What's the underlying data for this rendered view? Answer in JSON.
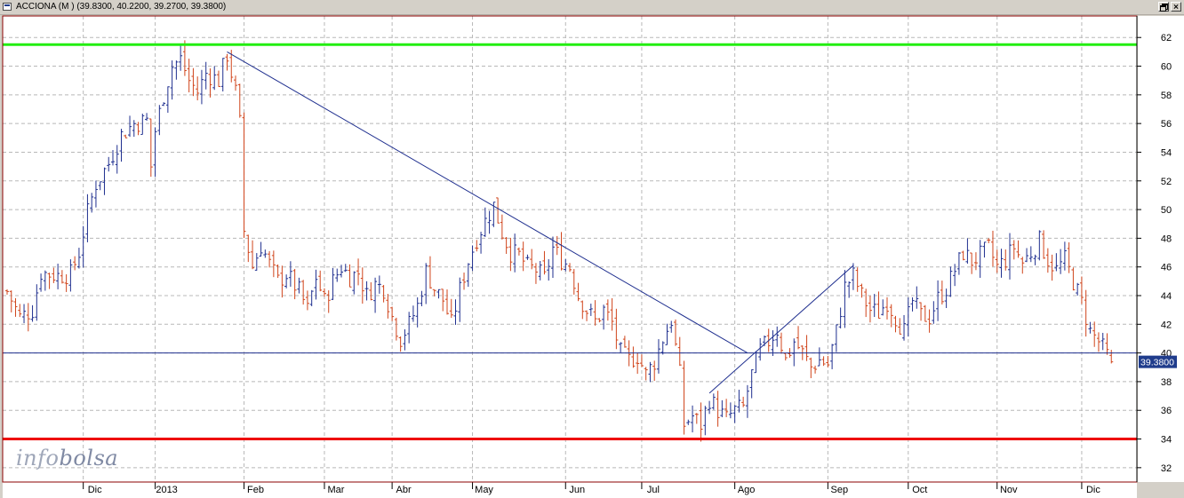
{
  "window": {
    "title": "ACCIONA (M ) (39.8300, 40.2200, 39.2700, 39.3800)"
  },
  "watermark": {
    "part1": "info",
    "part2": "bolsa"
  },
  "colors": {
    "background": "#ffffff",
    "grid": "#b8b8b8",
    "up_bar": "#1f2f8f",
    "down_bar": "#d0441b",
    "support_line": "#ee0000",
    "resistance_line": "#22ee11",
    "trend_line": "#1f2f8f",
    "price_line": "#1f2f8f",
    "frame": "#8b0000"
  },
  "chart_data": {
    "type": "ohlc",
    "title": "ACCIONA (M )",
    "last_ohlc": {
      "open": 39.83,
      "high": 40.22,
      "low": 39.27,
      "close": 39.38
    },
    "ylim": [
      31,
      63.5
    ],
    "yticks": [
      32,
      34,
      36,
      38,
      40,
      42,
      44,
      46,
      48,
      50,
      52,
      54,
      56,
      58,
      60,
      62
    ],
    "x_range": [
      0,
      262
    ],
    "xticks": [
      {
        "label": "Dic",
        "x": 18
      },
      {
        "label": "2013",
        "x": 35
      },
      {
        "label": "Feb",
        "x": 56
      },
      {
        "label": "Mar",
        "x": 75
      },
      {
        "label": "Abr",
        "x": 91
      },
      {
        "label": "May",
        "x": 110
      },
      {
        "label": "Jun",
        "x": 132
      },
      {
        "label": "Jul",
        "x": 150
      },
      {
        "label": "Ago",
        "x": 172
      },
      {
        "label": "Sep",
        "x": 194
      },
      {
        "label": "Oct",
        "x": 213
      },
      {
        "label": "Nov",
        "x": 234
      },
      {
        "label": "Dic",
        "x": 254
      }
    ],
    "price_marker": {
      "value": 39.38,
      "label": "39.3800",
      "line_level": 40
    },
    "horizontal_lines": [
      {
        "name": "resistance",
        "value": 61.5,
        "color": "#22ee11"
      },
      {
        "name": "support",
        "value": 34.0,
        "color": "#ee0000"
      }
    ],
    "trendlines": [
      {
        "name": "downtrend",
        "x1": 52,
        "y1": 61.0,
        "x2": 175,
        "y2": 40.0
      },
      {
        "name": "uptrend",
        "x1": 166,
        "y1": 37.2,
        "x2": 200,
        "y2": 46.1
      }
    ],
    "series_close": [
      [
        0,
        44.3
      ],
      [
        3,
        42.5
      ],
      [
        6,
        43.0
      ],
      [
        8,
        45.6
      ],
      [
        12,
        45.4
      ],
      [
        15,
        45.5
      ],
      [
        17,
        47.0
      ],
      [
        19,
        49.8
      ],
      [
        21,
        51.8
      ],
      [
        24,
        53.2
      ],
      [
        27,
        55.2
      ],
      [
        30,
        56.0
      ],
      [
        33,
        56.2
      ],
      [
        34,
        53.0
      ],
      [
        35,
        55.5
      ],
      [
        37,
        58.0
      ],
      [
        39,
        60.0
      ],
      [
        41,
        60.5
      ],
      [
        43,
        59.0
      ],
      [
        45,
        58.2
      ],
      [
        47,
        59.5
      ],
      [
        50,
        59.0
      ],
      [
        52,
        60.8
      ],
      [
        54,
        58.2
      ],
      [
        55,
        56.0
      ],
      [
        56,
        48.5
      ],
      [
        58,
        46.0
      ],
      [
        60,
        47.5
      ],
      [
        62,
        46.2
      ],
      [
        64,
        45.0
      ],
      [
        66,
        45.5
      ],
      [
        69,
        44.3
      ],
      [
        71,
        43.0
      ],
      [
        73,
        45.3
      ],
      [
        75,
        43.6
      ],
      [
        77,
        45.0
      ],
      [
        79,
        46.0
      ],
      [
        81,
        45.3
      ],
      [
        83,
        45.6
      ],
      [
        85,
        44.0
      ],
      [
        87,
        44.8
      ],
      [
        89,
        44.5
      ],
      [
        91,
        42.5
      ],
      [
        93,
        41.0
      ],
      [
        95,
        42.0
      ],
      [
        97,
        43.3
      ],
      [
        99,
        45.7
      ],
      [
        101,
        44.5
      ],
      [
        103,
        43.7
      ],
      [
        105,
        42.0
      ],
      [
        107,
        44.4
      ],
      [
        109,
        46.4
      ],
      [
        111,
        48.0
      ],
      [
        113,
        49.2
      ],
      [
        115,
        50.3
      ],
      [
        117,
        48.4
      ],
      [
        119,
        47.0
      ],
      [
        121,
        46.8
      ],
      [
        123,
        46.0
      ],
      [
        125,
        45.8
      ],
      [
        127,
        45.2
      ],
      [
        129,
        47.3
      ],
      [
        131,
        46.5
      ],
      [
        133,
        46.0
      ],
      [
        135,
        44.0
      ],
      [
        137,
        43.0
      ],
      [
        139,
        42.2
      ],
      [
        141,
        43.0
      ],
      [
        143,
        42.1
      ],
      [
        145,
        40.0
      ],
      [
        147,
        39.5
      ],
      [
        149,
        39.8
      ],
      [
        151,
        38.5
      ],
      [
        153,
        39.4
      ],
      [
        155,
        41.0
      ],
      [
        157,
        42.3
      ],
      [
        159,
        38.5
      ],
      [
        160,
        35.0
      ],
      [
        162,
        35.6
      ],
      [
        164,
        35.0
      ],
      [
        166,
        36.8
      ],
      [
        168,
        36.0
      ],
      [
        170,
        35.4
      ],
      [
        172,
        36.0
      ],
      [
        174,
        36.2
      ],
      [
        176,
        38.5
      ],
      [
        178,
        40.2
      ],
      [
        180,
        40.8
      ],
      [
        182,
        41.6
      ],
      [
        184,
        39.5
      ],
      [
        186,
        40.8
      ],
      [
        188,
        40.0
      ],
      [
        190,
        39.0
      ],
      [
        192,
        39.5
      ],
      [
        194,
        39.2
      ],
      [
        196,
        41.5
      ],
      [
        198,
        44.6
      ],
      [
        200,
        45.4
      ],
      [
        202,
        44.0
      ],
      [
        204,
        43.0
      ],
      [
        206,
        42.8
      ],
      [
        208,
        43.6
      ],
      [
        210,
        42.5
      ],
      [
        212,
        41.5
      ],
      [
        214,
        43.6
      ],
      [
        216,
        42.6
      ],
      [
        218,
        42.5
      ],
      [
        220,
        43.8
      ],
      [
        222,
        44.5
      ],
      [
        224,
        45.8
      ],
      [
        226,
        47.0
      ],
      [
        228,
        46.4
      ],
      [
        230,
        46.8
      ],
      [
        232,
        47.3
      ],
      [
        234,
        46.0
      ],
      [
        236,
        46.5
      ],
      [
        238,
        47.4
      ],
      [
        240,
        46.3
      ],
      [
        242,
        47.0
      ],
      [
        244,
        47.8
      ],
      [
        246,
        46.5
      ],
      [
        248,
        45.8
      ],
      [
        250,
        46.5
      ],
      [
        252,
        45.0
      ],
      [
        254,
        43.5
      ],
      [
        256,
        41.5
      ],
      [
        258,
        40.8
      ],
      [
        260,
        39.83
      ],
      [
        261,
        39.38
      ]
    ]
  }
}
